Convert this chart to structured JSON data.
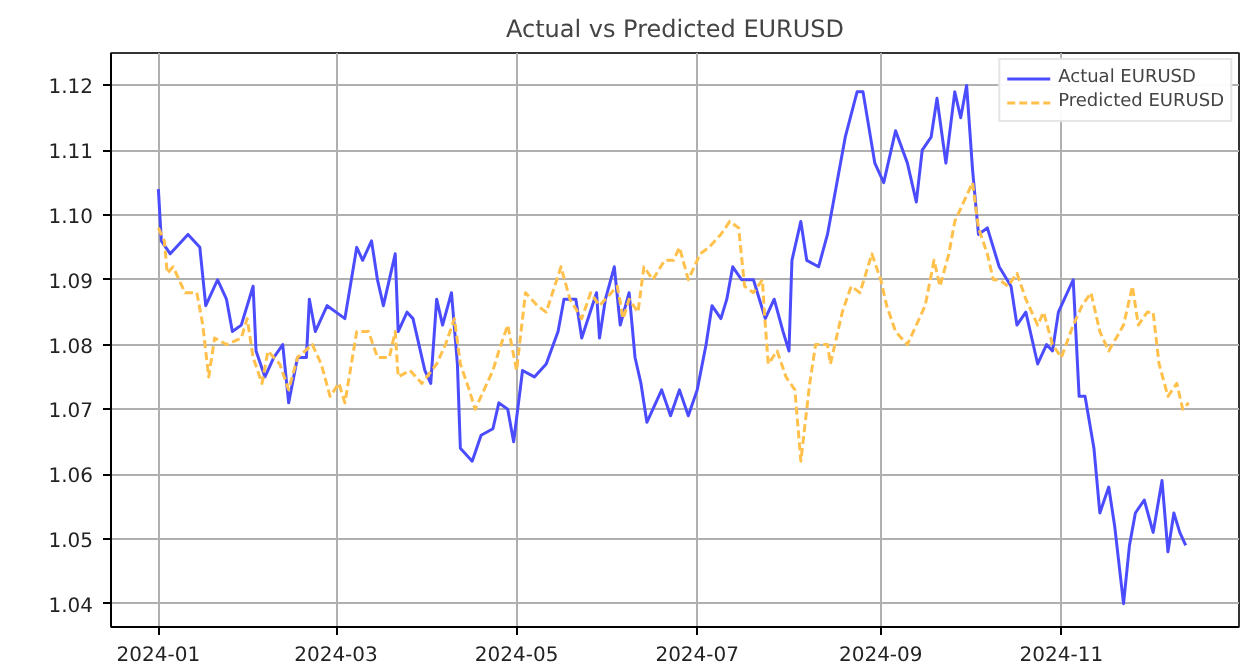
{
  "chart_data": {
    "type": "line",
    "title": "Actual vs Predicted EURUSD",
    "xlim": [
      "2023-12-16",
      "2024-12-31"
    ],
    "xticks": [
      "2024-01",
      "2024-03",
      "2024-05",
      "2024-07",
      "2024-09",
      "2024-11"
    ],
    "ylim": [
      1.0364,
      1.125
    ],
    "yticks": [
      1.04,
      1.05,
      1.06,
      1.07,
      1.08,
      1.09,
      {
        "value": 1.1,
        "label": "1.10"
      },
      1.11,
      1.12
    ],
    "grid": true,
    "legend": "top right",
    "series": [
      {
        "name": "Actual EURUSD",
        "color": "#4c4cff",
        "line_style": "solid",
        "x": [
          "2024-01-01",
          "2024-01-02",
          "2024-01-05",
          "2024-01-11",
          "2024-01-15",
          "2024-01-17",
          "2024-01-21",
          "2024-01-24",
          "2024-01-26",
          "2024-01-29",
          "2024-02-02",
          "2024-02-03",
          "2024-02-06",
          "2024-02-09",
          "2024-02-12",
          "2024-02-14",
          "2024-02-17",
          "2024-02-20",
          "2024-02-21",
          "2024-02-23",
          "2024-02-27",
          "2024-03-01",
          "2024-03-04",
          "2024-03-08",
          "2024-03-10",
          "2024-03-13",
          "2024-03-15",
          "2024-03-17",
          "2024-03-21",
          "2024-03-22",
          "2024-03-25",
          "2024-03-27",
          "2024-03-31",
          "2024-04-02",
          "2024-04-04",
          "2024-04-06",
          "2024-04-09",
          "2024-04-11",
          "2024-04-12",
          "2024-04-16",
          "2024-04-19",
          "2024-04-23",
          "2024-04-25",
          "2024-04-28",
          "2024-04-30",
          "2024-05-03",
          "2024-05-07",
          "2024-05-11",
          "2024-05-15",
          "2024-05-17",
          "2024-05-21",
          "2024-05-23",
          "2024-05-28",
          "2024-05-29",
          "2024-05-31",
          "2024-06-03",
          "2024-06-05",
          "2024-06-08",
          "2024-06-10",
          "2024-06-12",
          "2024-06-14",
          "2024-06-19",
          "2024-06-22",
          "2024-06-25",
          "2024-06-28",
          "2024-07-01",
          "2024-07-04",
          "2024-07-06",
          "2024-07-09",
          "2024-07-11",
          "2024-07-13",
          "2024-07-16",
          "2024-07-20",
          "2024-07-24",
          "2024-07-27",
          "2024-07-30",
          "2024-08-01",
          "2024-08-02",
          "2024-08-05",
          "2024-08-07",
          "2024-08-11",
          "2024-08-14",
          "2024-08-16",
          "2024-08-20",
          "2024-08-24",
          "2024-08-26",
          "2024-08-30",
          "2024-09-02",
          "2024-09-04",
          "2024-09-06",
          "2024-09-10",
          "2024-09-13",
          "2024-09-15",
          "2024-09-18",
          "2024-09-20",
          "2024-09-23",
          "2024-09-26",
          "2024-09-28",
          "2024-09-30",
          "2024-10-02",
          "2024-10-04",
          "2024-10-07",
          "2024-10-11",
          "2024-10-15",
          "2024-10-17",
          "2024-10-20",
          "2024-10-24",
          "2024-10-27",
          "2024-10-29",
          "2024-10-31",
          "2024-11-02",
          "2024-11-05",
          "2024-11-07",
          "2024-11-09",
          "2024-11-12",
          "2024-11-14",
          "2024-11-17",
          "2024-11-19",
          "2024-11-22",
          "2024-11-24",
          "2024-11-26",
          "2024-11-29",
          "2024-12-02",
          "2024-12-05",
          "2024-12-07",
          "2024-12-09",
          "2024-12-11",
          "2024-12-13"
        ],
        "values": [
          1.104,
          1.096,
          1.094,
          1.097,
          1.095,
          1.086,
          1.09,
          1.087,
          1.082,
          1.083,
          1.089,
          1.079,
          1.075,
          1.078,
          1.08,
          1.071,
          1.078,
          1.078,
          1.087,
          1.082,
          1.086,
          1.085,
          1.084,
          1.095,
          1.093,
          1.096,
          1.09,
          1.086,
          1.094,
          1.082,
          1.085,
          1.084,
          1.076,
          1.074,
          1.087,
          1.083,
          1.088,
          1.077,
          1.064,
          1.062,
          1.066,
          1.067,
          1.071,
          1.07,
          1.065,
          1.076,
          1.075,
          1.077,
          1.082,
          1.087,
          1.087,
          1.081,
          1.088,
          1.081,
          1.087,
          1.092,
          1.083,
          1.088,
          1.078,
          1.074,
          1.068,
          1.073,
          1.069,
          1.073,
          1.069,
          1.073,
          1.08,
          1.086,
          1.084,
          1.087,
          1.092,
          1.09,
          1.09,
          1.084,
          1.087,
          1.082,
          1.079,
          1.093,
          1.099,
          1.093,
          1.092,
          1.097,
          1.102,
          1.112,
          1.119,
          1.119,
          1.108,
          1.105,
          1.109,
          1.113,
          1.108,
          1.102,
          1.11,
          1.112,
          1.118,
          1.108,
          1.119,
          1.115,
          1.12,
          1.107,
          1.097,
          1.098,
          1.092,
          1.089,
          1.083,
          1.085,
          1.077,
          1.08,
          1.079,
          1.085,
          1.087,
          1.09,
          1.072,
          1.072,
          1.064,
          1.054,
          1.058,
          1.052,
          1.04,
          1.049,
          1.054,
          1.056,
          1.051,
          1.059,
          1.048,
          1.054,
          1.051,
          1.049
        ]
      },
      {
        "name": "Predicted EURUSD",
        "color": "#ffc04c",
        "line_style": "dashed",
        "x": [
          "2024-01-01",
          "2024-01-03",
          "2024-01-04",
          "2024-01-06",
          "2024-01-10",
          "2024-01-14",
          "2024-01-16",
          "2024-01-18",
          "2024-01-20",
          "2024-01-24",
          "2024-01-29",
          "2024-01-31",
          "2024-02-02",
          "2024-02-05",
          "2024-02-07",
          "2024-02-11",
          "2024-02-14",
          "2024-02-17",
          "2024-02-22",
          "2024-02-25",
          "2024-02-28",
          "2024-03-02",
          "2024-03-04",
          "2024-03-08",
          "2024-03-12",
          "2024-03-15",
          "2024-03-19",
          "2024-03-21",
          "2024-03-22",
          "2024-03-26",
          "2024-03-30",
          "2024-04-04",
          "2024-04-07",
          "2024-04-10",
          "2024-04-12",
          "2024-04-15",
          "2024-04-17",
          "2024-04-20",
          "2024-04-23",
          "2024-04-25",
          "2024-04-28",
          "2024-05-01",
          "2024-05-04",
          "2024-05-08",
          "2024-05-11",
          "2024-05-16",
          "2024-05-19",
          "2024-05-23",
          "2024-05-26",
          "2024-05-29",
          "2024-06-04",
          "2024-06-06",
          "2024-06-08",
          "2024-06-11",
          "2024-06-13",
          "2024-06-16",
          "2024-06-20",
          "2024-06-23",
          "2024-06-25",
          "2024-06-28",
          "2024-07-02",
          "2024-07-05",
          "2024-07-09",
          "2024-07-12",
          "2024-07-15",
          "2024-07-17",
          "2024-07-20",
          "2024-07-23",
          "2024-07-24",
          "2024-07-25",
          "2024-07-28",
          "2024-07-31",
          "2024-08-03",
          "2024-08-05",
          "2024-08-08",
          "2024-08-10",
          "2024-08-14",
          "2024-08-15",
          "2024-08-19",
          "2024-08-22",
          "2024-08-25",
          "2024-08-29",
          "2024-09-01",
          "2024-09-03",
          "2024-09-06",
          "2024-09-10",
          "2024-09-13",
          "2024-09-16",
          "2024-09-19",
          "2024-09-21",
          "2024-09-24",
          "2024-09-26",
          "2024-09-30",
          "2024-10-02",
          "2024-10-04",
          "2024-10-07",
          "2024-10-09",
          "2024-10-11",
          "2024-10-14",
          "2024-10-17",
          "2024-10-20",
          "2024-10-24",
          "2024-10-26",
          "2024-10-29",
          "2024-11-01",
          "2024-11-05",
          "2024-11-08",
          "2024-11-11",
          "2024-11-14",
          "2024-11-17",
          "2024-11-22",
          "2024-11-25",
          "2024-11-27",
          "2024-11-30",
          "2024-12-02",
          "2024-12-04",
          "2024-12-07",
          "2024-12-10",
          "2024-12-12",
          "2024-12-14"
        ],
        "values": [
          1.098,
          1.096,
          1.091,
          1.092,
          1.088,
          1.088,
          1.083,
          1.075,
          1.081,
          1.08,
          1.081,
          1.084,
          1.078,
          1.074,
          1.079,
          1.077,
          1.073,
          1.078,
          1.08,
          1.077,
          1.072,
          1.074,
          1.071,
          1.082,
          1.082,
          1.078,
          1.078,
          1.082,
          1.075,
          1.076,
          1.074,
          1.077,
          1.08,
          1.084,
          1.077,
          1.073,
          1.07,
          1.073,
          1.076,
          1.079,
          1.083,
          1.076,
          1.088,
          1.086,
          1.085,
          1.092,
          1.087,
          1.084,
          1.088,
          1.086,
          1.089,
          1.084,
          1.087,
          1.085,
          1.092,
          1.09,
          1.093,
          1.093,
          1.095,
          1.09,
          1.094,
          1.095,
          1.097,
          1.099,
          1.098,
          1.089,
          1.088,
          1.09,
          1.083,
          1.077,
          1.079,
          1.075,
          1.073,
          1.062,
          1.074,
          1.08,
          1.08,
          1.077,
          1.085,
          1.089,
          1.088,
          1.094,
          1.09,
          1.086,
          1.082,
          1.08,
          1.083,
          1.086,
          1.093,
          1.089,
          1.094,
          1.099,
          1.103,
          1.105,
          1.098,
          1.094,
          1.09,
          1.09,
          1.089,
          1.091,
          1.087,
          1.083,
          1.085,
          1.08,
          1.078,
          1.083,
          1.086,
          1.088,
          1.082,
          1.079,
          1.083,
          1.089,
          1.083,
          1.085,
          1.085,
          1.077,
          1.072,
          1.074,
          1.07,
          1.071
        ]
      }
    ]
  }
}
